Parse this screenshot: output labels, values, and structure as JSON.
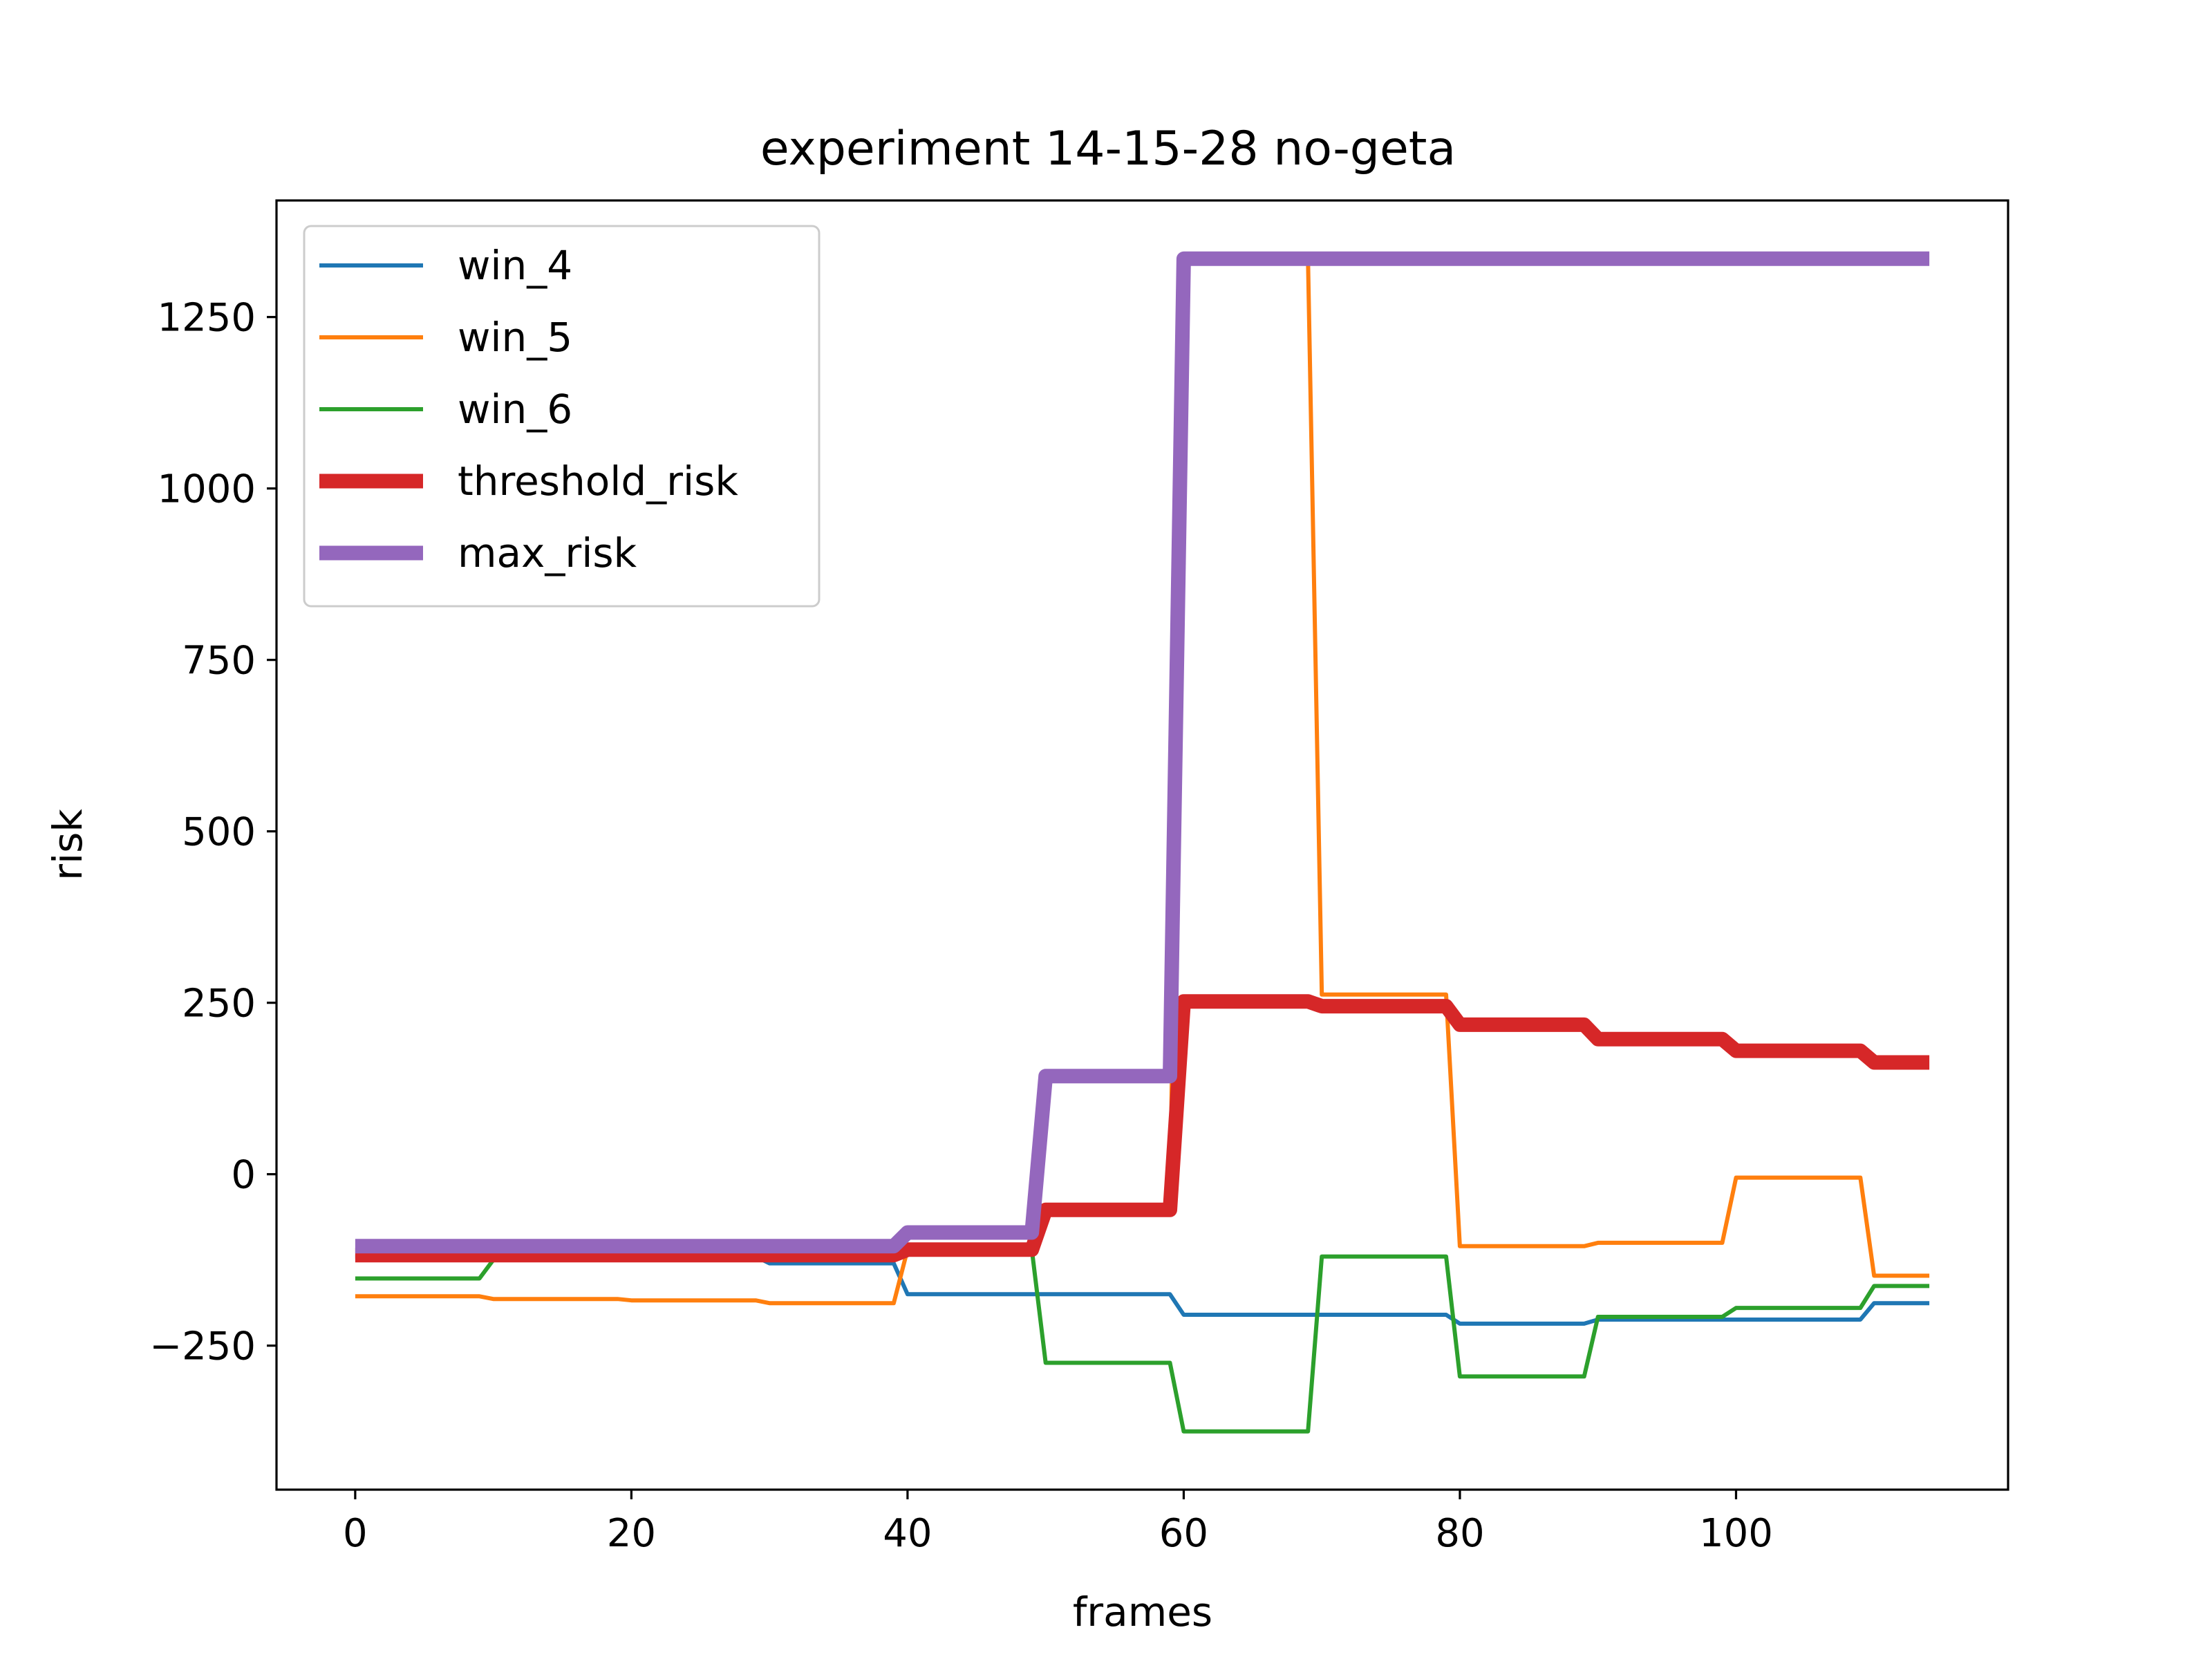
{
  "chart_data": {
    "type": "line",
    "title": "experiment 14-15-28 no-geta",
    "xlabel": "frames",
    "ylabel": "risk",
    "xlim": [
      -5.7,
      119.7
    ],
    "ylim": [
      -460,
      1420
    ],
    "xticks": [
      0,
      20,
      40,
      60,
      80,
      100
    ],
    "yticks": [
      -250,
      0,
      250,
      500,
      750,
      1000,
      1250
    ],
    "ytick_labels": [
      "−250",
      "0",
      "250",
      "500",
      "750",
      "1000",
      "1250"
    ],
    "grid": false,
    "legend_position": "top-left",
    "series": [
      {
        "name": "win_4",
        "color": "#1f77b4",
        "width": "thin",
        "points": [
          [
            0,
            -120
          ],
          [
            29,
            -120
          ],
          [
            30,
            -130
          ],
          [
            39,
            -130
          ],
          [
            40,
            -175
          ],
          [
            59,
            -175
          ],
          [
            60,
            -205
          ],
          [
            79,
            -205
          ],
          [
            80,
            -218
          ],
          [
            89,
            -218
          ],
          [
            90,
            -212
          ],
          [
            109,
            -212
          ],
          [
            110,
            -188
          ],
          [
            114,
            -188
          ]
        ]
      },
      {
        "name": "win_5",
        "color": "#ff7f0e",
        "width": "thin",
        "points": [
          [
            0,
            -178
          ],
          [
            9,
            -178
          ],
          [
            10,
            -182
          ],
          [
            19,
            -182
          ],
          [
            20,
            -184
          ],
          [
            29,
            -184
          ],
          [
            30,
            -188
          ],
          [
            39,
            -188
          ],
          [
            40,
            -110
          ],
          [
            49,
            -110
          ],
          [
            50,
            -50
          ],
          [
            59,
            -50
          ],
          [
            60,
            1335
          ],
          [
            69,
            1335
          ],
          [
            70,
            262
          ],
          [
            79,
            262
          ],
          [
            80,
            -105
          ],
          [
            89,
            -105
          ],
          [
            90,
            -100
          ],
          [
            99,
            -100
          ],
          [
            100,
            -5
          ],
          [
            109,
            -5
          ],
          [
            110,
            -148
          ],
          [
            114,
            -148
          ]
        ]
      },
      {
        "name": "win_6",
        "color": "#2ca02c",
        "width": "thin",
        "points": [
          [
            0,
            -152
          ],
          [
            9,
            -152
          ],
          [
            10,
            -125
          ],
          [
            19,
            -125
          ],
          [
            20,
            -120
          ],
          [
            39,
            -120
          ],
          [
            40,
            -110
          ],
          [
            49,
            -110
          ],
          [
            50,
            -275
          ],
          [
            59,
            -275
          ],
          [
            60,
            -375
          ],
          [
            69,
            -375
          ],
          [
            70,
            -120
          ],
          [
            79,
            -120
          ],
          [
            80,
            -295
          ],
          [
            89,
            -295
          ],
          [
            90,
            -208
          ],
          [
            99,
            -208
          ],
          [
            100,
            -195
          ],
          [
            109,
            -195
          ],
          [
            110,
            -163
          ],
          [
            114,
            -163
          ]
        ]
      },
      {
        "name": "threshold_risk",
        "color": "#d62728",
        "width": "thick",
        "points": [
          [
            0,
            -118
          ],
          [
            39,
            -118
          ],
          [
            40,
            -110
          ],
          [
            49,
            -110
          ],
          [
            50,
            -52
          ],
          [
            59,
            -52
          ],
          [
            60,
            252
          ],
          [
            69,
            252
          ],
          [
            70,
            245
          ],
          [
            79,
            245
          ],
          [
            80,
            218
          ],
          [
            89,
            218
          ],
          [
            90,
            197
          ],
          [
            99,
            197
          ],
          [
            100,
            180
          ],
          [
            109,
            180
          ],
          [
            110,
            163
          ],
          [
            114,
            163
          ]
        ]
      },
      {
        "name": "max_risk",
        "color": "#9467bd",
        "width": "thick",
        "points": [
          [
            0,
            -105
          ],
          [
            39,
            -105
          ],
          [
            40,
            -85
          ],
          [
            49,
            -85
          ],
          [
            50,
            143
          ],
          [
            59,
            143
          ],
          [
            60,
            1335
          ],
          [
            114,
            1335
          ]
        ]
      }
    ]
  }
}
